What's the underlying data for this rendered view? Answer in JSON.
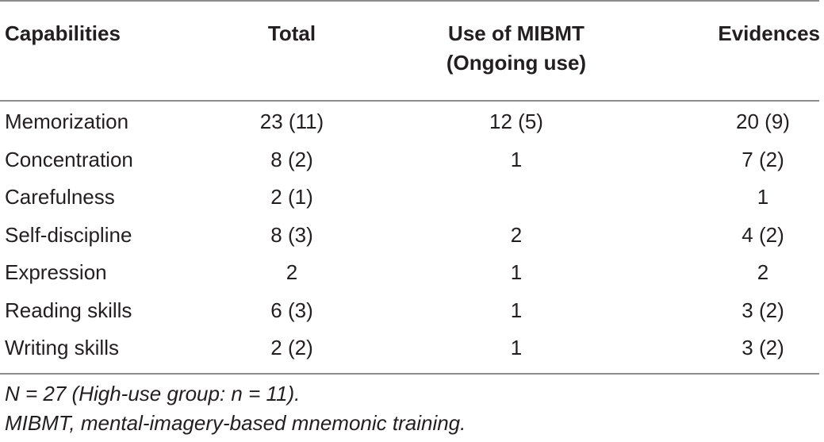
{
  "table": {
    "headers": {
      "capabilities": "Capabilities",
      "total": "Total",
      "use_line1": "Use of MIBMT",
      "use_line2": "(Ongoing use)",
      "evidences": "Evidences"
    },
    "rows": [
      {
        "capability": "Memorization",
        "total": "23 (11)",
        "use": "12 (5)",
        "evidences": "20 (9)"
      },
      {
        "capability": "Concentration",
        "total": "8 (2)",
        "use": "1",
        "evidences": "7 (2)"
      },
      {
        "capability": "Carefulness",
        "total": "2 (1)",
        "use": "",
        "evidences": "1"
      },
      {
        "capability": "Self-discipline",
        "total": "8 (3)",
        "use": "2",
        "evidences": "4 (2)"
      },
      {
        "capability": "Expression",
        "total": "2",
        "use": "1",
        "evidences": "2"
      },
      {
        "capability": "Reading skills",
        "total": "6 (3)",
        "use": "1",
        "evidences": "3 (2)"
      },
      {
        "capability": "Writing skills",
        "total": "2 (2)",
        "use": "1",
        "evidences": "3 (2)"
      }
    ]
  },
  "notes": {
    "line1": "N = 27 (High-use group: n = 11).",
    "line2": "MIBMT, mental-imagery-based mnemonic training."
  }
}
